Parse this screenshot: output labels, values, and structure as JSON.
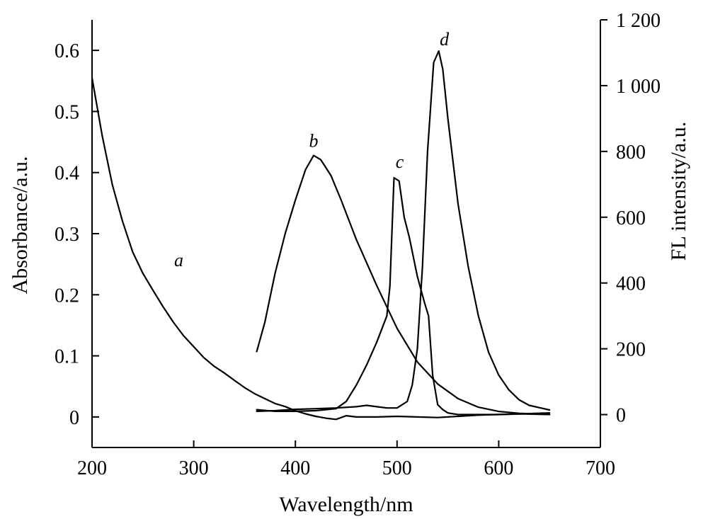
{
  "chart_data": {
    "type": "line",
    "xlabel": "Wavelength/nm",
    "ylabel_left": "Absorbance/a.u.",
    "ylabel_right": "FL intensity/a.u.",
    "xlim": [
      200,
      700
    ],
    "ylim_left": [
      -0.05,
      0.65
    ],
    "ylim_right": [
      -100,
      1200
    ],
    "x_ticks": [
      "200",
      "300",
      "400",
      "500",
      "600",
      "700"
    ],
    "x_tick_values": [
      200,
      300,
      400,
      500,
      600,
      700
    ],
    "y_left_ticks": [
      "0",
      "0.1",
      "0.2",
      "0.3",
      "0.4",
      "0.5",
      "0.6"
    ],
    "y_left_tick_values": [
      0,
      0.1,
      0.2,
      0.3,
      0.4,
      0.5,
      0.6
    ],
    "y_right_ticks": [
      "0",
      "200",
      "400",
      "600",
      "800",
      "1 000",
      "1 200"
    ],
    "y_right_tick_values": [
      0,
      200,
      400,
      600,
      800,
      1000,
      1200
    ],
    "grid": false,
    "series": [
      {
        "label": "a",
        "axis": "left",
        "x": [
          200,
          210,
          220,
          230,
          240,
          250,
          260,
          270,
          280,
          290,
          300,
          310,
          320,
          330,
          340,
          350,
          360,
          370,
          380,
          390,
          400,
          410,
          420,
          430,
          440,
          450,
          460,
          480,
          500,
          520,
          540,
          560,
          580,
          600,
          620,
          650
        ],
        "y": [
          0.555,
          0.46,
          0.38,
          0.32,
          0.27,
          0.235,
          0.207,
          0.18,
          0.155,
          0.133,
          0.115,
          0.097,
          0.083,
          0.072,
          0.06,
          0.048,
          0.038,
          0.03,
          0.022,
          0.017,
          0.01,
          0.005,
          0.001,
          -0.002,
          -0.004,
          0.002,
          0.0,
          0.0,
          0.001,
          0.0,
          -0.001,
          0.001,
          0.003,
          0.004,
          0.005,
          0.004
        ]
      },
      {
        "label": "b",
        "axis": "left",
        "x": [
          362,
          370,
          380,
          390,
          400,
          410,
          418,
          425,
          435,
          445,
          460,
          480,
          500,
          520,
          540,
          560,
          580,
          600,
          620,
          650
        ],
        "y": [
          0.107,
          0.155,
          0.235,
          0.3,
          0.355,
          0.405,
          0.428,
          0.421,
          0.395,
          0.355,
          0.29,
          0.215,
          0.145,
          0.09,
          0.054,
          0.03,
          0.016,
          0.009,
          0.006,
          0.004
        ]
      },
      {
        "label": "c",
        "axis": "right",
        "x": [
          362,
          380,
          400,
          420,
          440,
          450,
          460,
          470,
          480,
          490,
          493,
          497,
          502,
          507,
          512,
          520,
          527,
          531,
          535,
          540,
          545,
          550,
          560,
          580,
          600,
          620,
          650
        ],
        "y": [
          15,
          10,
          10,
          12,
          18,
          40,
          90,
          150,
          220,
          300,
          390,
          720,
          710,
          600,
          540,
          420,
          340,
          300,
          120,
          30,
          15,
          5,
          0,
          0,
          0,
          2,
          5
        ]
      },
      {
        "label": "d",
        "axis": "right",
        "x": [
          362,
          380,
          400,
          420,
          440,
          460,
          470,
          480,
          490,
          500,
          510,
          515,
          520,
          525,
          530,
          536,
          541,
          545,
          550,
          560,
          570,
          580,
          590,
          600,
          610,
          620,
          630,
          650
        ],
        "y": [
          10,
          12,
          16,
          18,
          20,
          24,
          28,
          24,
          20,
          20,
          40,
          90,
          200,
          450,
          800,
          1070,
          1105,
          1050,
          900,
          640,
          450,
          300,
          190,
          120,
          75,
          45,
          28,
          14
        ]
      }
    ]
  }
}
